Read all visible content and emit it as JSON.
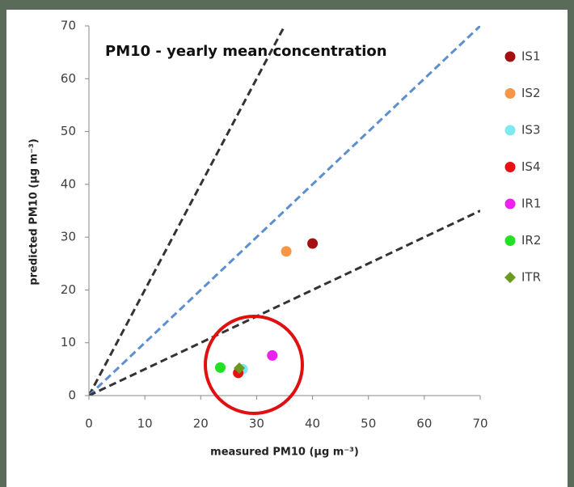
{
  "chart_data": {
    "type": "scatter",
    "title": "PM10 - yearly mean concentration",
    "xlabel": "measured PM10 (µg m⁻³)",
    "ylabel": "predicted PM10 (µg m⁻³)",
    "xlim": [
      0,
      70
    ],
    "ylim": [
      0,
      70
    ],
    "xticks": [
      0,
      10,
      20,
      30,
      40,
      50,
      60,
      70
    ],
    "yticks": [
      0,
      10,
      20,
      30,
      40,
      50,
      60,
      70
    ],
    "grid": false,
    "legend": "right",
    "reference_lines": [
      {
        "slope": 2,
        "color": "#333333"
      },
      {
        "slope": 1,
        "color": "#5b8fd0"
      },
      {
        "slope": 0.5,
        "color": "#333333"
      }
    ],
    "series": [
      {
        "name": "IS1",
        "color": "#a50f0f",
        "marker": "circle",
        "x": [
          40
        ],
        "values": [
          28.8
        ]
      },
      {
        "name": "IS2",
        "color": "#f79646",
        "marker": "circle",
        "x": [
          35.3
        ],
        "values": [
          27.3
        ]
      },
      {
        "name": "IS3",
        "color": "#7fe9f0",
        "marker": "circle",
        "x": [
          27.5
        ],
        "values": [
          5.0
        ]
      },
      {
        "name": "IS4",
        "color": "#e81010",
        "marker": "circle",
        "x": [
          26.7
        ],
        "values": [
          4.3
        ]
      },
      {
        "name": "IR1",
        "color": "#ee22ee",
        "marker": "circle",
        "x": [
          32.8
        ],
        "values": [
          7.6
        ]
      },
      {
        "name": "IR2",
        "color": "#22e022",
        "marker": "circle",
        "x": [
          23.5
        ],
        "values": [
          5.3
        ]
      },
      {
        "name": "ITR",
        "color": "#6b9a1f",
        "marker": "diamond",
        "x": [
          26.9
        ],
        "values": [
          5.2
        ]
      }
    ]
  }
}
